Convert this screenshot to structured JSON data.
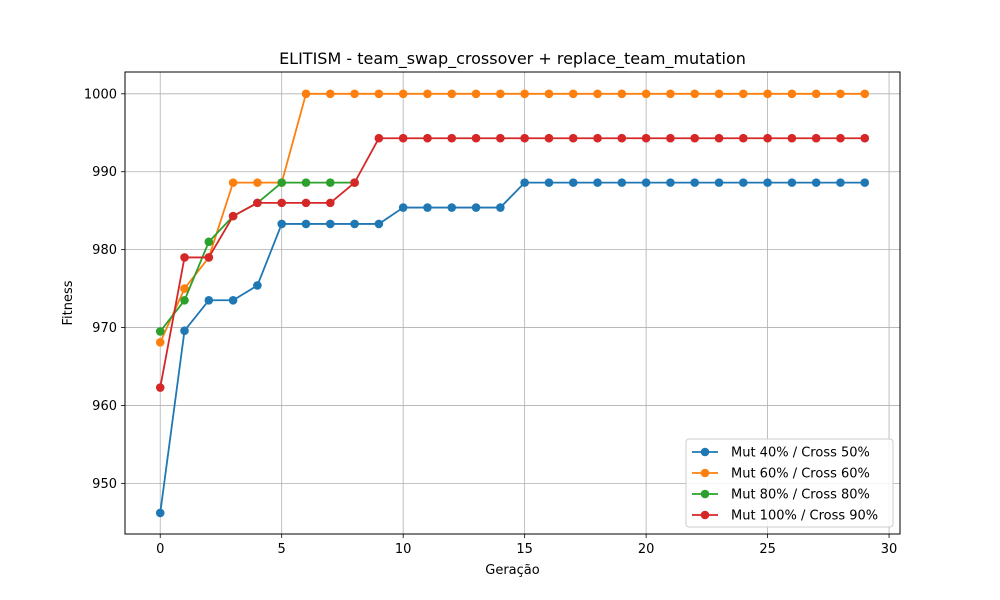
{
  "chart_data": {
    "type": "line",
    "title": "ELITISM - team_swap_crossover + replace_team_mutation",
    "xlabel": "Geração",
    "ylabel": "Fitness",
    "xlim": [
      -1.45,
      30.45
    ],
    "ylim": [
      943.5,
      1002.8
    ],
    "xticks": [
      0,
      5,
      10,
      15,
      20,
      25,
      30
    ],
    "yticks": [
      950,
      960,
      970,
      980,
      990,
      1000
    ],
    "grid": true,
    "legend_position": "lower-right",
    "series": [
      {
        "name": "Mut 40% / Cross 50%",
        "color": "#1f77b4",
        "x": [
          0,
          1,
          2,
          3,
          4,
          5,
          6,
          7,
          8,
          9,
          10,
          11,
          12,
          13,
          14,
          15,
          16,
          17,
          18,
          19,
          20,
          21,
          22,
          23,
          24,
          25,
          26,
          27,
          28,
          29
        ],
        "y": [
          946.2,
          969.6,
          973.5,
          973.5,
          975.4,
          983.3,
          983.3,
          983.3,
          983.3,
          983.3,
          985.4,
          985.4,
          985.4,
          985.4,
          985.4,
          988.6,
          988.6,
          988.6,
          988.6,
          988.6,
          988.6,
          988.6,
          988.6,
          988.6,
          988.6,
          988.6,
          988.6,
          988.6,
          988.6,
          988.6
        ]
      },
      {
        "name": "Mut 60% / Cross 60%",
        "color": "#ff7f0e",
        "x": [
          0,
          1,
          2,
          3,
          4,
          5,
          6,
          7,
          8,
          9,
          10,
          11,
          12,
          13,
          14,
          15,
          16,
          17,
          18,
          19,
          20,
          21,
          22,
          23,
          24,
          25,
          26,
          27,
          28,
          29
        ],
        "y": [
          968.1,
          975.0,
          979.0,
          988.6,
          988.6,
          988.6,
          1000,
          1000,
          1000,
          1000,
          1000,
          1000,
          1000,
          1000,
          1000,
          1000,
          1000,
          1000,
          1000,
          1000,
          1000,
          1000,
          1000,
          1000,
          1000,
          1000,
          1000,
          1000,
          1000,
          1000
        ]
      },
      {
        "name": "Mut 80% / Cross 80%",
        "color": "#2ca02c",
        "x": [
          0,
          1,
          2,
          3,
          4,
          5,
          6,
          7,
          8
        ],
        "y": [
          969.5,
          973.5,
          981.0,
          984.3,
          986.0,
          988.6,
          988.6,
          988.6,
          988.6
        ]
      },
      {
        "name": "Mut 100% / Cross 90%",
        "color": "#d62728",
        "x": [
          0,
          1,
          2,
          3,
          4,
          5,
          6,
          7,
          8,
          9,
          10,
          11,
          12,
          13,
          14,
          15,
          16,
          17,
          18,
          19,
          20,
          21,
          22,
          23,
          24,
          25,
          26,
          27,
          28,
          29
        ],
        "y": [
          962.3,
          979.0,
          979.0,
          984.3,
          986.0,
          986.0,
          986.0,
          986.0,
          988.6,
          994.3,
          994.3,
          994.3,
          994.3,
          994.3,
          994.3,
          994.3,
          994.3,
          994.3,
          994.3,
          994.3,
          994.3,
          994.3,
          994.3,
          994.3,
          994.3,
          994.3,
          994.3,
          994.3,
          994.3,
          994.3
        ]
      }
    ]
  }
}
